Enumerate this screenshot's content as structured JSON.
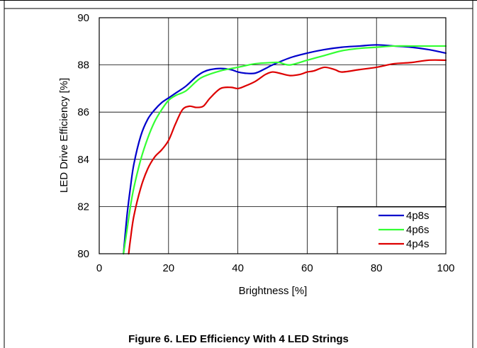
{
  "figure": {
    "caption": "Figure 6. LED Efficiency With 4 LED Strings"
  },
  "colors": {
    "grid": "#000000",
    "series_4p8s": "#0000cc",
    "series_4p6s": "#33ff33",
    "series_4p4s": "#dd0000"
  },
  "chart_data": {
    "type": "line",
    "title": "",
    "xlabel": "Brightness [%]",
    "ylabel": "LED Drive Efficiency [%]",
    "xlim": [
      0,
      100
    ],
    "ylim": [
      80,
      90
    ],
    "x_ticks": [
      "0",
      "20",
      "40",
      "60",
      "80",
      "100"
    ],
    "y_ticks": [
      "80",
      "82",
      "84",
      "86",
      "88",
      "90"
    ],
    "grid": true,
    "legend_position": "bottom-right",
    "series": [
      {
        "name": "4p8s",
        "color": "#0000cc",
        "x": [
          7,
          8,
          9,
          10,
          12,
          14,
          16,
          18,
          20,
          22,
          25,
          28,
          30,
          32,
          35,
          38,
          40,
          42,
          45,
          48,
          50,
          55,
          60,
          65,
          70,
          75,
          80,
          85,
          90,
          95,
          100
        ],
        "y": [
          80,
          81.6,
          82.8,
          83.8,
          85.0,
          85.7,
          86.1,
          86.4,
          86.6,
          86.8,
          87.1,
          87.5,
          87.7,
          87.8,
          87.85,
          87.8,
          87.7,
          87.65,
          87.65,
          87.85,
          88.0,
          88.3,
          88.5,
          88.65,
          88.75,
          88.8,
          88.85,
          88.8,
          88.75,
          88.65,
          88.5
        ]
      },
      {
        "name": "4p6s",
        "color": "#33ff33",
        "x": [
          7,
          8,
          9,
          10,
          12,
          14,
          16,
          18,
          20,
          22,
          25,
          28,
          30,
          35,
          40,
          45,
          50,
          52,
          55,
          60,
          65,
          70,
          75,
          80,
          85,
          90,
          95,
          100
        ],
        "y": [
          80,
          81.0,
          82.0,
          82.8,
          84.0,
          84.9,
          85.6,
          86.1,
          86.5,
          86.7,
          86.9,
          87.3,
          87.5,
          87.75,
          87.9,
          88.05,
          88.1,
          88.1,
          88.0,
          88.2,
          88.4,
          88.6,
          88.7,
          88.75,
          88.8,
          88.8,
          88.8,
          88.8
        ]
      },
      {
        "name": "4p4s",
        "color": "#dd0000",
        "x": [
          8.5,
          9,
          10,
          12,
          14,
          16,
          18,
          20,
          22,
          24,
          26,
          28,
          30,
          32,
          35,
          38,
          40,
          42,
          45,
          48,
          50,
          52,
          55,
          58,
          60,
          62,
          65,
          68,
          70,
          75,
          80,
          85,
          90,
          95,
          100
        ],
        "y": [
          80,
          80.6,
          81.6,
          82.8,
          83.6,
          84.1,
          84.4,
          84.8,
          85.5,
          86.1,
          86.25,
          86.2,
          86.25,
          86.6,
          87.0,
          87.05,
          87.0,
          87.1,
          87.3,
          87.6,
          87.7,
          87.65,
          87.55,
          87.6,
          87.7,
          87.75,
          87.9,
          87.8,
          87.7,
          87.8,
          87.9,
          88.05,
          88.1,
          88.2,
          88.2
        ]
      }
    ]
  }
}
